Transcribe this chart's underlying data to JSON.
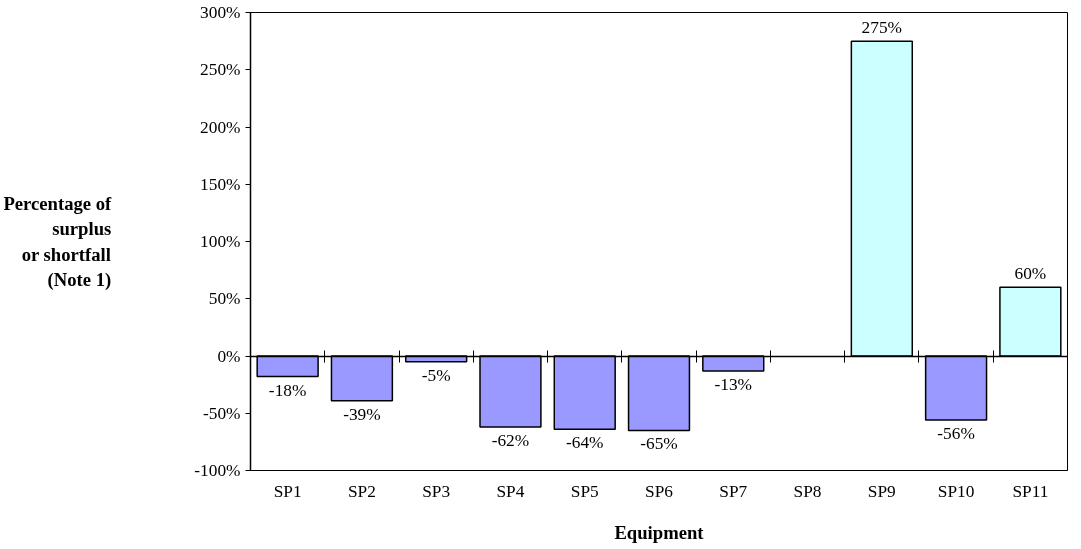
{
  "chart_data": {
    "type": "bar",
    "xlabel": "Equipment",
    "ylabel": "Percentage of\nsurplus\nor shortfall\n(Note 1)",
    "categories": [
      "SP1",
      "SP2",
      "SP3",
      "SP4",
      "SP5",
      "SP6",
      "SP7",
      "SP8",
      "SP9",
      "SP10",
      "SP11"
    ],
    "values": [
      -18,
      -39,
      -5,
      -62,
      -64,
      -65,
      -13,
      null,
      275,
      -56,
      60
    ],
    "colors": [
      "#9999ff",
      "#9999ff",
      "#9999ff",
      "#9999ff",
      "#9999ff",
      "#9999ff",
      "#9999ff",
      "#9999ff",
      "#ccffff",
      "#9999ff",
      "#ccffff"
    ],
    "value_labels": [
      "-18%",
      "-39%",
      "-5%",
      "-62%",
      "-64%",
      "-65%",
      "-13%",
      null,
      "275%",
      "-56%",
      "60%"
    ],
    "ylim": [
      -100,
      300
    ],
    "yticks": [
      {
        "value": -100,
        "label": "-100%"
      },
      {
        "value": -50,
        "label": "-50%"
      },
      {
        "value": 0,
        "label": "0%"
      },
      {
        "value": 50,
        "label": "50%"
      },
      {
        "value": 100,
        "label": "100%"
      },
      {
        "value": 150,
        "label": "150%"
      },
      {
        "value": 200,
        "label": "200%"
      },
      {
        "value": 250,
        "label": "250%"
      },
      {
        "value": 300,
        "label": "300%"
      }
    ],
    "tick_labels": "xy"
  }
}
